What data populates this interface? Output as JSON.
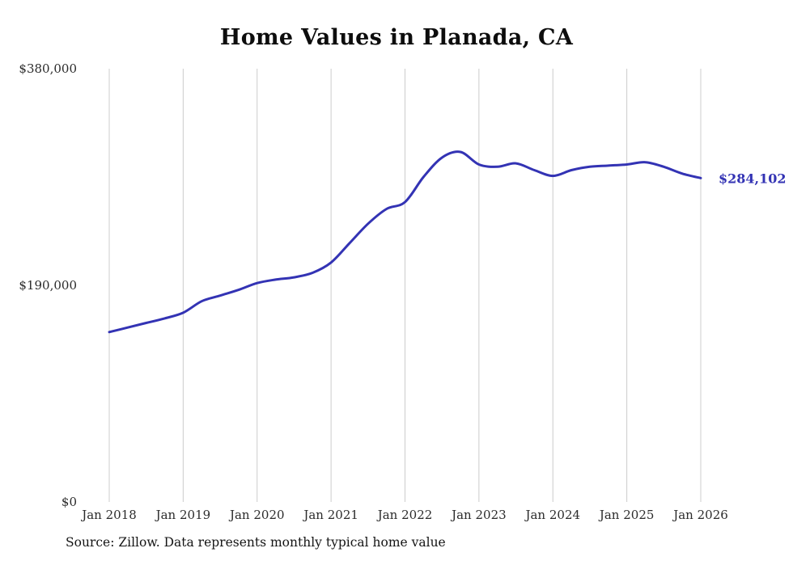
{
  "chart": {
    "title": "Home Values in Planada, CA",
    "source": "Source: Zillow. Data represents monthly typical home value",
    "end_label": "$284,102",
    "accent_color": "#3333b4",
    "grid_color": "#cccccc",
    "text_color": "#2b2b2b"
  },
  "chart_data": {
    "type": "line",
    "title": "Home Values in Planada, CA",
    "xlabel": "",
    "ylabel": "",
    "ylim": [
      0,
      380000
    ],
    "x_range_years": [
      2018,
      2026
    ],
    "grid": "vertical-only",
    "legend": "none",
    "y_ticks": [
      {
        "value": 380000,
        "label": "$380,000"
      },
      {
        "value": 190000,
        "label": "$190,000"
      },
      {
        "value": 0,
        "label": "$0"
      }
    ],
    "x_ticks": [
      {
        "t": 2018,
        "label": "Jan 2018"
      },
      {
        "t": 2019,
        "label": "Jan 2019"
      },
      {
        "t": 2020,
        "label": "Jan 2020"
      },
      {
        "t": 2021,
        "label": "Jan 2021"
      },
      {
        "t": 2022,
        "label": "Jan 2022"
      },
      {
        "t": 2023,
        "label": "Jan 2023"
      },
      {
        "t": 2024,
        "label": "Jan 2024"
      },
      {
        "t": 2025,
        "label": "Jan 2025"
      },
      {
        "t": 2026,
        "label": "Jan 2026"
      }
    ],
    "series": [
      {
        "name": "Monthly typical home value",
        "points": [
          {
            "date": "2018-01",
            "value": 149000
          },
          {
            "date": "2018-04",
            "value": 153000
          },
          {
            "date": "2018-07",
            "value": 157000
          },
          {
            "date": "2018-10",
            "value": 161000
          },
          {
            "date": "2019-01",
            "value": 166000
          },
          {
            "date": "2019-04",
            "value": 176000
          },
          {
            "date": "2019-07",
            "value": 181000
          },
          {
            "date": "2019-10",
            "value": 186000
          },
          {
            "date": "2020-01",
            "value": 192000
          },
          {
            "date": "2020-04",
            "value": 195000
          },
          {
            "date": "2020-07",
            "value": 197000
          },
          {
            "date": "2020-10",
            "value": 201000
          },
          {
            "date": "2021-01",
            "value": 210000
          },
          {
            "date": "2021-04",
            "value": 227000
          },
          {
            "date": "2021-07",
            "value": 244000
          },
          {
            "date": "2021-10",
            "value": 257000
          },
          {
            "date": "2022-01",
            "value": 263000
          },
          {
            "date": "2022-04",
            "value": 285000
          },
          {
            "date": "2022-07",
            "value": 302000
          },
          {
            "date": "2022-10",
            "value": 307000
          },
          {
            "date": "2023-01",
            "value": 296000
          },
          {
            "date": "2023-04",
            "value": 294000
          },
          {
            "date": "2023-07",
            "value": 297000
          },
          {
            "date": "2023-10",
            "value": 291000
          },
          {
            "date": "2024-01",
            "value": 286000
          },
          {
            "date": "2024-04",
            "value": 291000
          },
          {
            "date": "2024-07",
            "value": 294000
          },
          {
            "date": "2024-10",
            "value": 295000
          },
          {
            "date": "2025-01",
            "value": 296000
          },
          {
            "date": "2025-04",
            "value": 298000
          },
          {
            "date": "2025-07",
            "value": 294000
          },
          {
            "date": "2025-10",
            "value": 288000
          },
          {
            "date": "2026-01",
            "value": 284102
          }
        ]
      }
    ]
  }
}
